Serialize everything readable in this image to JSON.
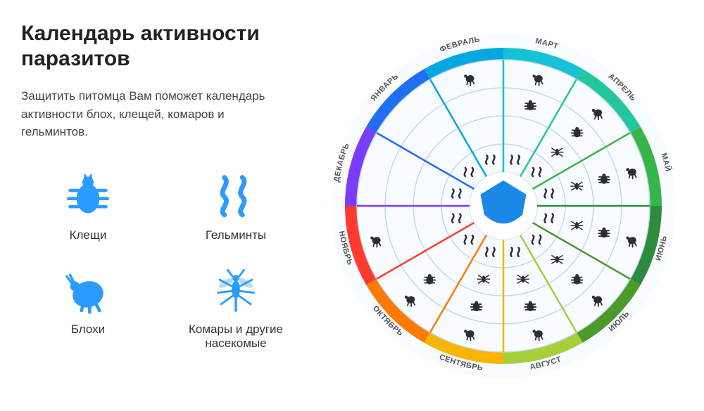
{
  "title": "Календарь активности паразитов",
  "description": "Защитить питомца Вам поможет календарь активности блох, клещей, комаров и гельминтов.",
  "legend": {
    "ticks": "Клещи",
    "helminths": "Гельминты",
    "fleas": "Блохи",
    "mosquitoes": "Комары и другие насекомые"
  },
  "accent_color": "#2b9cff",
  "text_color": "#333333",
  "wheel": {
    "type": "radial-calendar",
    "background": "#ffffff",
    "center_shield_color": "#1b87e6",
    "month_label_color": "#555555",
    "month_label_fontsize": 11,
    "ring_stroke": "#c4d8f0",
    "inner_ring_fill": "#f5f9ff",
    "months": [
      {
        "label": "ЯНВАРЬ",
        "color": "#1f6ff0"
      },
      {
        "label": "ФЕВРАЛЬ",
        "color": "#00a7e1"
      },
      {
        "label": "МАРТ",
        "color": "#15c1d4"
      },
      {
        "label": "АПРЕЛЬ",
        "color": "#22c79d"
      },
      {
        "label": "МАЙ",
        "color": "#36b54a"
      },
      {
        "label": "ИЮНЬ",
        "color": "#2e8b3d"
      },
      {
        "label": "ИЮЛЬ",
        "color": "#4c9a2a"
      },
      {
        "label": "АВГУСТ",
        "color": "#a6ce39"
      },
      {
        "label": "СЕНТЯБРЬ",
        "color": "#f7b500"
      },
      {
        "label": "ОКТЯБРЬ",
        "color": "#ff7a00"
      },
      {
        "label": "НОЯБРЬ",
        "color": "#ff3b30"
      },
      {
        "label": "ДЕКАБРЬ",
        "color": "#7a3cff"
      }
    ],
    "rings": [
      {
        "id": "helminths",
        "r_inner": 48,
        "r_outer": 88
      },
      {
        "id": "mosquitoes",
        "r_inner": 88,
        "r_outer": 128
      },
      {
        "id": "ticks",
        "r_inner": 128,
        "r_outer": 168
      },
      {
        "id": "fleas",
        "r_inner": 168,
        "r_outer": 208
      }
    ],
    "activity": {
      "helminths": [
        1,
        1,
        1,
        1,
        1,
        1,
        1,
        1,
        1,
        1,
        1,
        1
      ],
      "mosquitoes": [
        0,
        0,
        0,
        1,
        1,
        1,
        1,
        1,
        1,
        0,
        0,
        0
      ],
      "ticks": [
        0,
        0,
        1,
        1,
        1,
        1,
        1,
        1,
        1,
        1,
        0,
        0
      ],
      "fleas": [
        0,
        1,
        1,
        1,
        1,
        1,
        1,
        1,
        1,
        1,
        1,
        0
      ]
    },
    "outer_r": 225,
    "band_inner": 208,
    "label_r": 236
  }
}
